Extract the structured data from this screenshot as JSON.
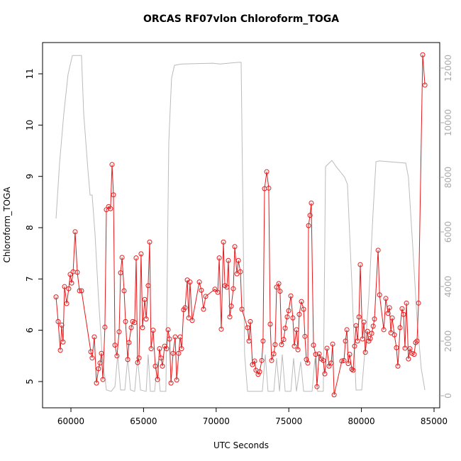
{
  "chart_data": {
    "type": "line",
    "title": "ORCAS RF07vlon Chloroform_TOGA",
    "xlabel": "UTC Seconds",
    "ylabel": "Chloroform_TOGA",
    "xlim": [
      58047,
      85391
    ],
    "ylim": [
      4.488,
      11.609
    ],
    "y2lim": [
      -442,
      12935
    ],
    "xticks": [
      60000,
      65000,
      70000,
      75000,
      80000,
      85000
    ],
    "yticks": [
      5,
      6,
      7,
      8,
      9,
      10,
      11
    ],
    "y2ticks": [
      0,
      2000,
      4000,
      6000,
      8000,
      10000,
      12000
    ],
    "series": [
      {
        "color": "#e41a1c",
        "marker": "circle",
        "x": [
          58975,
          59120,
          59270,
          59370,
          59460,
          59560,
          59710,
          59850,
          59950,
          60050,
          60150,
          60290,
          60440,
          60590,
          60730,
          61370,
          61460,
          61610,
          61760,
          61900,
          62000,
          62100,
          62200,
          62340,
          62440,
          62590,
          62730,
          62830,
          62930,
          63030,
          63170,
          63320,
          63420,
          63520,
          63660,
          63760,
          63910,
          64000,
          64150,
          64250,
          64390,
          64490,
          64590,
          64690,
          64830,
          64930,
          65080,
          65180,
          65320,
          65420,
          65520,
          65660,
          65810,
          65960,
          66100,
          66200,
          66300,
          66450,
          66590,
          66690,
          66790,
          66890,
          67030,
          67180,
          67280,
          67420,
          67520,
          67620,
          67760,
          67860,
          68010,
          68110,
          68200,
          68350,
          68840,
          68980,
          69130,
          69280,
          69910,
          70110,
          70210,
          70350,
          70500,
          70600,
          70740,
          70840,
          70940,
          71040,
          71180,
          71280,
          71430,
          71530,
          71670,
          71770,
          72160,
          72260,
          72350,
          72500,
          72650,
          72740,
          72890,
          72990,
          73140,
          73230,
          73330,
          73480,
          73620,
          73720,
          73820,
          73970,
          74060,
          74160,
          74310,
          74400,
          74500,
          74650,
          74750,
          74890,
          74990,
          75140,
          75280,
          75380,
          75530,
          75630,
          75720,
          75870,
          76020,
          76110,
          76210,
          76310,
          76360,
          76460,
          76550,
          76700,
          76850,
          76940,
          77090,
          77240,
          77380,
          77480,
          77630,
          77770,
          77920,
          78020,
          78120,
          78650,
          78800,
          78900,
          79000,
          79090,
          79190,
          79340,
          79430,
          79530,
          79630,
          79730,
          79830,
          79920,
          80070,
          80170,
          80270,
          80420,
          80510,
          80610,
          80710,
          80810,
          80900,
          81150,
          81250,
          81540,
          81680,
          81830,
          81930,
          82030,
          82120,
          82270,
          82410,
          82510,
          82660,
          82800,
          82900,
          83000,
          83100,
          83240,
          83340,
          83490,
          83630,
          83730,
          83830,
          83930,
          84220,
          84370
        ],
        "values": [
          6.65,
          6.17,
          5.61,
          6.1,
          5.77,
          6.85,
          6.52,
          6.81,
          7.09,
          6.92,
          7.14,
          7.92,
          7.13,
          6.77,
          6.77,
          5.58,
          5.46,
          5.87,
          4.97,
          5.25,
          5.36,
          5.55,
          5.04,
          6.06,
          8.35,
          8.41,
          8.37,
          9.23,
          8.64,
          5.71,
          5.5,
          5.97,
          7.12,
          7.42,
          6.77,
          6.17,
          5.43,
          5.76,
          6.05,
          6.17,
          6.15,
          7.41,
          5.37,
          5.46,
          7.49,
          6.05,
          6.6,
          6.22,
          6.87,
          7.72,
          5.64,
          6.0,
          5.3,
          5.04,
          5.64,
          5.46,
          5.3,
          5.69,
          5.64,
          6.01,
          5.83,
          4.97,
          5.55,
          5.87,
          5.03,
          5.55,
          5.87,
          5.64,
          6.4,
          6.44,
          6.98,
          6.24,
          6.94,
          6.19,
          6.94,
          6.78,
          6.41,
          6.66,
          6.8,
          6.74,
          7.41,
          6.02,
          7.72,
          6.87,
          6.84,
          7.36,
          6.26,
          6.47,
          6.81,
          7.63,
          7.1,
          7.36,
          7.14,
          6.41,
          6.05,
          5.79,
          6.17,
          5.33,
          5.4,
          5.22,
          5.14,
          5.19,
          5.41,
          5.79,
          8.76,
          9.09,
          8.77,
          6.12,
          5.41,
          5.54,
          5.72,
          6.84,
          6.91,
          6.76,
          5.72,
          5.82,
          6.04,
          6.26,
          6.38,
          6.67,
          6.24,
          5.69,
          6.01,
          5.62,
          6.31,
          6.56,
          6.41,
          5.88,
          5.43,
          5.36,
          8.04,
          8.24,
          8.48,
          5.71,
          5.53,
          4.9,
          5.54,
          5.44,
          5.41,
          5.15,
          5.65,
          5.3,
          5.36,
          5.73,
          4.74,
          5.4,
          5.41,
          5.79,
          6.01,
          5.35,
          5.53,
          5.24,
          5.22,
          5.69,
          6.09,
          5.79,
          6.26,
          7.28,
          5.83,
          6.16,
          5.57,
          5.98,
          5.79,
          5.84,
          5.94,
          6.08,
          6.22,
          7.56,
          6.69,
          6.01,
          6.62,
          6.33,
          6.44,
          5.95,
          6.24,
          5.91,
          5.66,
          5.3,
          6.05,
          6.42,
          6.31,
          5.65,
          6.53,
          5.44,
          5.64,
          5.55,
          5.53,
          5.76,
          5.79,
          6.53,
          11.37,
          10.78
        ]
      },
      {
        "color": "#bbbbbb",
        "axis": "y2",
        "x": [
          58975,
          59220,
          59510,
          59800,
          60100,
          60730,
          60880,
          61170,
          61320,
          61460,
          61660,
          61900,
          62150,
          62440,
          62780,
          63030,
          63220,
          63420,
          63710,
          63910,
          64100,
          64390,
          64590,
          64790,
          65180,
          65320,
          65470,
          65760,
          65960,
          66150,
          66540,
          66740,
          66930,
          67130,
          67620,
          69770,
          70250,
          71520,
          71720,
          71960,
          72160,
          73180,
          73380,
          73570,
          73970,
          74160,
          74360,
          74550,
          74750,
          75140,
          75330,
          75530,
          75820,
          76020,
          76600,
          76800,
          76990,
          77380,
          77530,
          77970,
          78260,
          78460,
          78650,
          78850,
          79040,
          79340,
          79630,
          80020,
          80220,
          80510,
          80800,
          81000,
          81240,
          83050,
          83240,
          83540,
          83830,
          84120,
          84370
        ],
        "values": [
          6490,
          8520,
          10340,
          11760,
          12460,
          12460,
          10340,
          8260,
          7350,
          7350,
          5920,
          3580,
          1510,
          210,
          160,
          340,
          1510,
          210,
          210,
          1380,
          210,
          160,
          1380,
          210,
          160,
          1510,
          160,
          160,
          1250,
          160,
          160,
          9300,
          11630,
          12100,
          12150,
          12180,
          12150,
          12210,
          12210,
          1510,
          160,
          160,
          1510,
          160,
          160,
          1380,
          160,
          1510,
          160,
          160,
          1380,
          160,
          1250,
          160,
          160,
          1380,
          160,
          160,
          8390,
          8620,
          8390,
          8260,
          8130,
          8000,
          7740,
          4100,
          210,
          210,
          1510,
          3580,
          6700,
          8570,
          8600,
          8520,
          8000,
          5400,
          2800,
          990,
          210
        ]
      }
    ]
  }
}
